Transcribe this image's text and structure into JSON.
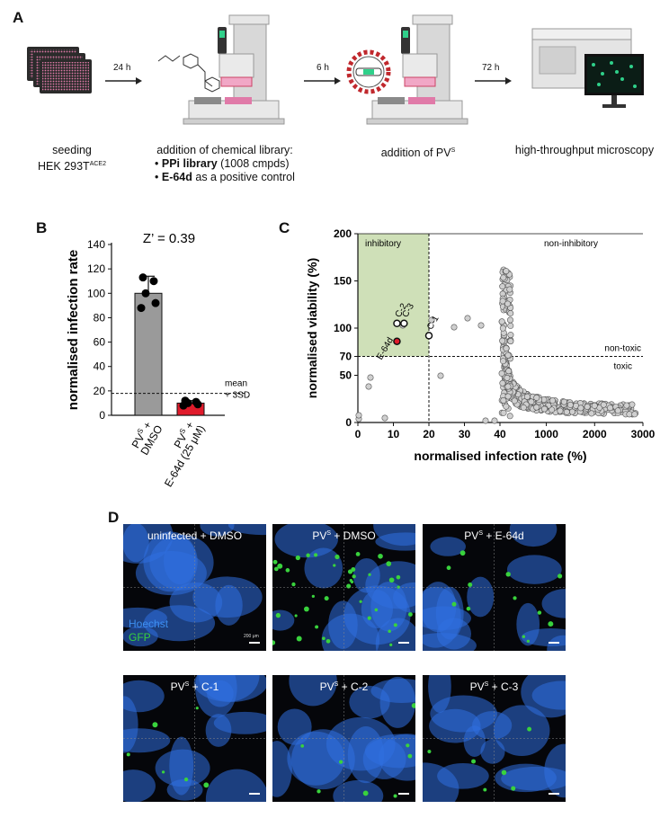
{
  "panel_a": {
    "label": "A",
    "arrows": [
      "24 h",
      "6 h",
      "72 h"
    ],
    "captions": {
      "seeding_1": "seeding",
      "seeding_2": "HEK 293T",
      "seeding_sup": "ACE2",
      "library_title": "addition of chemical library:",
      "library_bullet1_bold": "PPi library",
      "library_bullet1_rest": " (1008 cmpds)",
      "library_bullet2_bold": "E-64d",
      "library_bullet2_rest": " as a positive control",
      "pv_text": "addition of PV",
      "pv_sup": "S",
      "microscopy": "high-throughput microscopy"
    },
    "colors": {
      "plate": "#e07aa8",
      "virus": "#c0282d",
      "cells": "#2fd08a"
    }
  },
  "panel_b": {
    "label": "B",
    "zprime": "Z’ = 0.39",
    "threshold_label_1": "mean",
    "threshold_label_2": "+ 3SD",
    "xtick_1a": "PV",
    "xtick_1sup": "S",
    "xtick_1b": " +",
    "xtick_1c": "DMSO",
    "xtick_2a": "PV",
    "xtick_2sup": "S",
    "xtick_2b": " +",
    "xtick_2c": "E-64d (25 μM)"
  },
  "panel_c": {
    "label": "C",
    "region_inhibitory": "inhibitory",
    "region_noninhibitory": "non-inhibitory",
    "non_toxic": "non-toxic",
    "toxic": "toxic"
  },
  "chart_data": [
    {
      "type": "bar",
      "categories": [
        "PVS + DMSO",
        "PVS + E-64d (25 μM)"
      ],
      "values": [
        100,
        10
      ],
      "errors": [
        14,
        2
      ],
      "points": [
        [
          88,
          92,
          100,
          110,
          113
        ],
        [
          8,
          9,
          10,
          11,
          12
        ]
      ],
      "colors": [
        "#9a9a9a",
        "#e01b2b"
      ],
      "threshold": 18,
      "ylabel": "normalised infection rate",
      "ylim": [
        0,
        140
      ],
      "yticks": [
        0,
        20,
        40,
        60,
        80,
        100,
        120,
        140
      ]
    },
    {
      "type": "scatter",
      "xlabel": "normalised infection rate (%)",
      "ylabel": "normalised viability (%)",
      "xticks": [
        "0",
        "10",
        "20",
        "30",
        "40",
        "1000",
        "2000",
        "3000"
      ],
      "yticks": [
        "0",
        "50",
        "70",
        "100",
        "150",
        "200"
      ],
      "xlim": [
        0,
        3000
      ],
      "ylim": [
        0,
        200
      ],
      "x_threshold": 20,
      "y_threshold": 70,
      "highlighted": [
        {
          "name": "C-1",
          "x": 20,
          "y": 92
        },
        {
          "name": "C-2",
          "x": 11,
          "y": 105
        },
        {
          "name": "C-3",
          "x": 13,
          "y": 105
        },
        {
          "name": "E-64d",
          "x": 11,
          "y": 86
        }
      ]
    }
  ],
  "panel_d": {
    "label": "D",
    "titles": [
      {
        "pre": "uninfected + DMSO",
        "sup": "",
        "post": ""
      },
      {
        "pre": "PV",
        "sup": "S",
        "post": " + DMSO"
      },
      {
        "pre": "PV",
        "sup": "S",
        "post": " + E-64d"
      },
      {
        "pre": "PV",
        "sup": "S",
        "post": " + C-1"
      },
      {
        "pre": "PV",
        "sup": "S",
        "post": " + C-2"
      },
      {
        "pre": "PV",
        "sup": "S",
        "post": " + C-3"
      }
    ],
    "legend_hoechst": "Hoechst",
    "legend_gfp": "GFP",
    "scalebar_label": "200 μm",
    "colors": {
      "hoechst": "#2f6fe0",
      "gfp": "#39d23d"
    }
  }
}
